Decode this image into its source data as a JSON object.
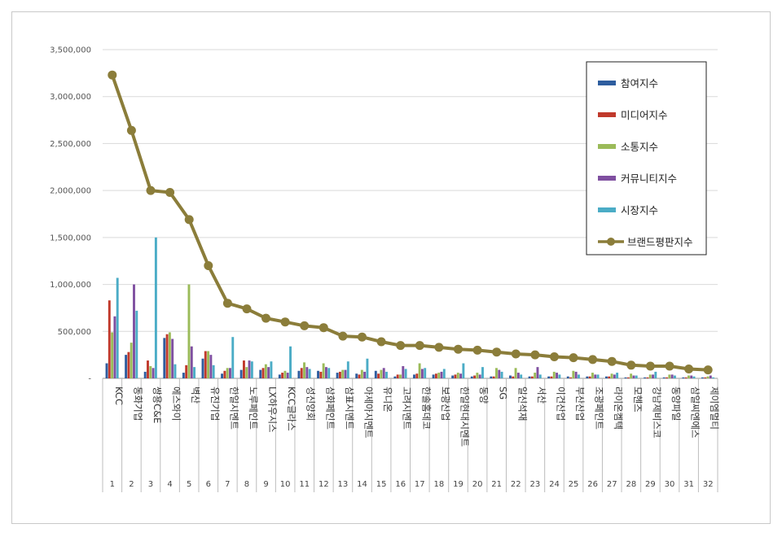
{
  "chart_data": {
    "type": "bar",
    "title": "",
    "xlabel": "",
    "ylabel": "",
    "ylim": [
      0,
      3500000
    ],
    "yticks": [
      0,
      500000,
      1000000,
      1500000,
      2000000,
      2500000,
      3000000,
      3500000
    ],
    "ytick_labels": [
      "-",
      "500,000",
      "1,000,000",
      "1,500,000",
      "2,000,000",
      "2,500,000",
      "3,000,000",
      "3,500,000"
    ],
    "grid": true,
    "legend_position": "top-right",
    "categories": [
      "KCC",
      "동화기업",
      "쌍용C&E",
      "에스와이",
      "벽산",
      "유진기업",
      "한일시멘트",
      "노루페인트",
      "LX하우시스",
      "KCC글라스",
      "성신양회",
      "삼화페인트",
      "삼표시멘트",
      "아세아시멘트",
      "유니온",
      "고려시멘트",
      "한솔홈데코",
      "보광산업",
      "한일현대시멘트",
      "동양",
      "SG",
      "일신석재",
      "서산",
      "이건산업",
      "부산산업",
      "조광페인트",
      "라이온켐텍",
      "모헨즈",
      "강남제비스코",
      "동양파일",
      "삼일씨엔에스",
      "제이엠멀티"
    ],
    "ranks": [
      "1",
      "2",
      "3",
      "4",
      "5",
      "6",
      "7",
      "8",
      "9",
      "10",
      "11",
      "12",
      "13",
      "14",
      "15",
      "16",
      "17",
      "18",
      "19",
      "20",
      "21",
      "22",
      "23",
      "24",
      "25",
      "26",
      "27",
      "28",
      "29",
      "30",
      "31",
      "32"
    ],
    "series": [
      {
        "name": "참여지수",
        "color": "#2E5D9F",
        "values": [
          160000,
          250000,
          70000,
          430000,
          60000,
          210000,
          50000,
          90000,
          90000,
          40000,
          80000,
          80000,
          60000,
          50000,
          80000,
          20000,
          40000,
          40000,
          30000,
          20000,
          20000,
          30000,
          20000,
          20000,
          20000,
          20000,
          20000,
          10000,
          10000,
          10000,
          10000,
          10000
        ]
      },
      {
        "name": "미디어지수",
        "color": "#C0392B",
        "values": [
          830000,
          280000,
          190000,
          470000,
          140000,
          290000,
          80000,
          190000,
          110000,
          60000,
          110000,
          70000,
          70000,
          40000,
          50000,
          40000,
          50000,
          50000,
          40000,
          30000,
          20000,
          20000,
          20000,
          20000,
          10000,
          20000,
          20000,
          10000,
          10000,
          10000,
          10000,
          10000
        ]
      },
      {
        "name": "소통지수",
        "color": "#9BBB59",
        "values": [
          490000,
          380000,
          130000,
          490000,
          1000000,
          290000,
          110000,
          120000,
          150000,
          80000,
          170000,
          160000,
          90000,
          90000,
          90000,
          40000,
          160000,
          60000,
          60000,
          60000,
          110000,
          110000,
          60000,
          70000,
          80000,
          60000,
          50000,
          50000,
          40000,
          40000,
          30000,
          20000
        ]
      },
      {
        "name": "커뮤니티지수",
        "color": "#7F4FA0",
        "values": [
          660000,
          1000000,
          110000,
          420000,
          340000,
          250000,
          110000,
          190000,
          120000,
          60000,
          120000,
          120000,
          90000,
          70000,
          110000,
          130000,
          100000,
          70000,
          50000,
          40000,
          90000,
          60000,
          120000,
          60000,
          70000,
          40000,
          40000,
          30000,
          40000,
          40000,
          30000,
          30000
        ]
      },
      {
        "name": "시장지수",
        "color": "#4BACC6",
        "values": [
          1070000,
          720000,
          1500000,
          150000,
          120000,
          140000,
          440000,
          180000,
          180000,
          340000,
          100000,
          110000,
          180000,
          210000,
          70000,
          100000,
          110000,
          100000,
          160000,
          120000,
          70000,
          40000,
          40000,
          40000,
          40000,
          40000,
          60000,
          30000,
          70000,
          30000,
          20000,
          10000
        ]
      },
      {
        "name": "브랜드평판지수",
        "color": "#8B7D3A",
        "type": "line",
        "values": [
          3230000,
          2640000,
          2000000,
          1980000,
          1690000,
          1200000,
          800000,
          740000,
          640000,
          600000,
          560000,
          540000,
          450000,
          440000,
          390000,
          350000,
          350000,
          330000,
          310000,
          300000,
          280000,
          260000,
          250000,
          230000,
          220000,
          200000,
          180000,
          140000,
          130000,
          130000,
          100000,
          90000
        ]
      }
    ]
  }
}
